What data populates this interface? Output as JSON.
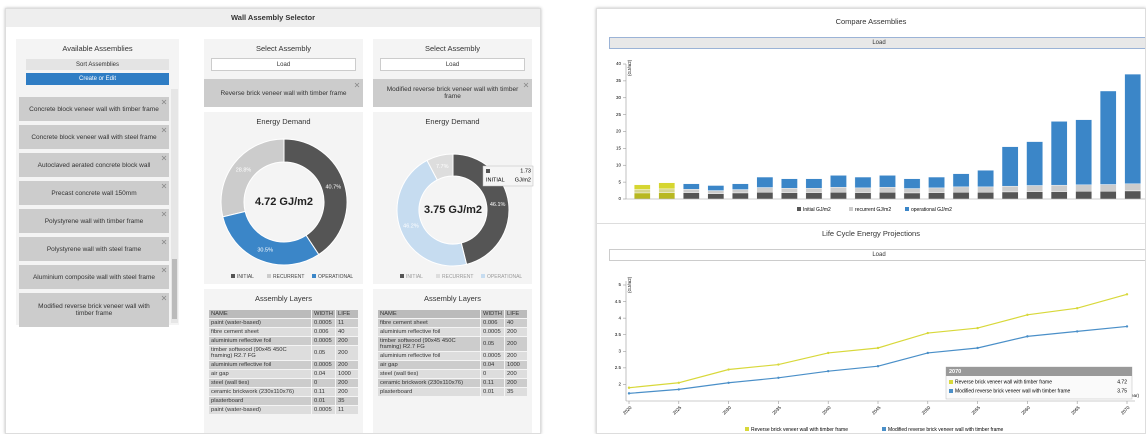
{
  "selector": {
    "title": "Wall Assembly Selector",
    "available": {
      "title": "Available Assemblies",
      "sort": "Sort Assemblies",
      "create": "Create or Edit",
      "items": [
        "Concrete block veneer wall with timber frame",
        "Concrete block veneer wall with steel frame",
        "Autoclaved aerated concrete block wall",
        "Precast concrete wall 150mm",
        "Polystyrene wall with timber frame",
        "Polystyrene wall with steel frame",
        "Aluminium composite wall with steel frame",
        "Modified reverse brick veneer wall with timber frame"
      ]
    },
    "columns": [
      {
        "select_title": "Select Assembly",
        "load": "Load",
        "selected": "Reverse brick veneer wall with timber frame",
        "energy": {
          "type": "pie",
          "title": "Energy Demand",
          "center_label": "4.72 GJ/m2",
          "labels": [
            "INITIAL",
            "RECURRENT",
            "OPERATIONAL"
          ],
          "values": [
            40.7,
            28.8,
            30.5
          ],
          "value_labels": [
            "40.7%",
            "28.8%",
            "30.5%"
          ],
          "colors": [
            "#555555",
            "#cccccc",
            "#3b86c8"
          ]
        },
        "layers": {
          "title": "Assembly Layers",
          "columns": [
            "NAME",
            "WIDTH",
            "LIFE"
          ],
          "rows": [
            [
              "paint (water-based)",
              "0.0005",
              "11"
            ],
            [
              "fibre cement sheet",
              "0.006",
              "40"
            ],
            [
              "aluminium reflective foil",
              "0.0005",
              "200"
            ],
            [
              "timber softwood (90x45 450C framing) R2.7 FG",
              "0.05",
              "200"
            ],
            [
              "aluminium reflective foil",
              "0.0005",
              "200"
            ],
            [
              "air gap",
              "0.04",
              "1000"
            ],
            [
              "steel (wall ties)",
              "0",
              "200"
            ],
            [
              "ceramic brickwork (230x110x76)",
              "0.11",
              "200"
            ],
            [
              "plasterboard",
              "0.01",
              "35"
            ],
            [
              "paint (water-based)",
              "0.0005",
              "11"
            ]
          ]
        }
      },
      {
        "select_title": "Select Assembly",
        "load": "Load",
        "selected": "Modified reverse brick veneer wall with timber frame",
        "energy": {
          "type": "pie",
          "title": "Energy Demand",
          "center_label": "3.75 GJ/m2",
          "labels": [
            "INITIAL",
            "RECURRENT",
            "OPERATIONAL"
          ],
          "values": [
            46.1,
            7.7,
            46.2
          ],
          "value_labels": [
            "46.1%",
            "7.7%",
            "46.2%"
          ],
          "colors": [
            "#555555",
            "#dddddd",
            "#c6dcf0"
          ],
          "tooltip": {
            "value": 1.73,
            "unit": "GJ/m2"
          }
        },
        "layers": {
          "title": "Assembly Layers",
          "columns": [
            "NAME",
            "WIDTH",
            "LIFE"
          ],
          "rows": [
            [
              "fibre cement sheet",
              "0.006",
              "40"
            ],
            [
              "aluminium reflective foil",
              "0.0005",
              "200"
            ],
            [
              "timber softwood (90x45 450C framing) R2.7 FG",
              "0.05",
              "200"
            ],
            [
              "aluminium reflective foil",
              "0.0005",
              "200"
            ],
            [
              "air gap",
              "0.04",
              "1000"
            ],
            [
              "steel (wall ties)",
              "0",
              "200"
            ],
            [
              "ceramic brickwork (230x110x76)",
              "0.11",
              "200"
            ],
            [
              "plasterboard",
              "0.01",
              "35"
            ]
          ]
        }
      }
    ]
  },
  "compare": {
    "title": "Compare Assemblies",
    "load": "Load",
    "chart": {
      "type": "bar",
      "stacked": true,
      "ylabel": "(GJ/m2)",
      "ylim": [
        0,
        40
      ],
      "yticks": [
        0,
        5,
        10,
        15,
        20,
        25,
        30,
        35,
        40
      ],
      "selected": [
        0,
        1
      ],
      "selected_colors": [
        "#b8b820",
        "#d6d68e",
        "#d6d630"
      ],
      "series": [
        {
          "name": "Initial GJ/m2",
          "color": "#555555",
          "values": [
            1.8,
            1.9,
            1.9,
            1.6,
            1.8,
            2.0,
            1.9,
            1.9,
            2.0,
            1.9,
            2.0,
            1.8,
            1.9,
            2.0,
            2.0,
            2.1,
            2.2,
            2.2,
            2.3,
            2.3,
            2.4
          ]
        },
        {
          "name": "recurrent GJ/m2",
          "color": "#cccccc",
          "values": [
            1.0,
            1.1,
            1.0,
            0.9,
            1.0,
            1.4,
            1.3,
            1.3,
            1.5,
            1.4,
            1.5,
            1.3,
            1.4,
            1.6,
            1.6,
            1.7,
            1.8,
            1.9,
            1.9,
            2.0,
            2.1
          ]
        },
        {
          "name": "operational GJ/m2",
          "color": "#3b86c8",
          "values": [
            1.4,
            1.8,
            1.6,
            1.5,
            1.7,
            3.1,
            2.8,
            2.8,
            3.5,
            3.2,
            3.5,
            2.9,
            3.2,
            3.9,
            4.9,
            11.7,
            13.0,
            18.9,
            19.3,
            27.7,
            32.5
          ]
        }
      ]
    }
  },
  "lifecycle": {
    "title": "Life Cycle Energy Projections",
    "load": "Load",
    "chart": {
      "type": "line",
      "ylabel": "(GJ/m2)",
      "xlabel": "(Year)",
      "x": [
        2020,
        2025,
        2030,
        2035,
        2040,
        2045,
        2050,
        2055,
        2060,
        2065,
        2070
      ],
      "xlim": [
        2020,
        2070
      ],
      "xticks": [
        2020,
        2025,
        2030,
        2035,
        2040,
        2045,
        2050,
        2055,
        2060,
        2065,
        2070
      ],
      "ylim": [
        1.5,
        5
      ],
      "yticks": [
        2,
        2.5,
        3,
        3.5,
        4,
        4.5,
        5
      ],
      "series": [
        {
          "name": "Reverse brick veneer wall with timber frame",
          "color": "#d8d83a",
          "values": [
            1.9,
            2.05,
            2.45,
            2.6,
            2.95,
            3.1,
            3.55,
            3.7,
            4.1,
            4.3,
            4.72
          ]
        },
        {
          "name": "Modified reverse brick veneer wall with timber frame",
          "color": "#4a8fc8",
          "values": [
            1.73,
            1.85,
            2.05,
            2.2,
            2.4,
            2.55,
            2.95,
            3.1,
            3.45,
            3.6,
            3.75
          ]
        }
      ]
    }
  }
}
